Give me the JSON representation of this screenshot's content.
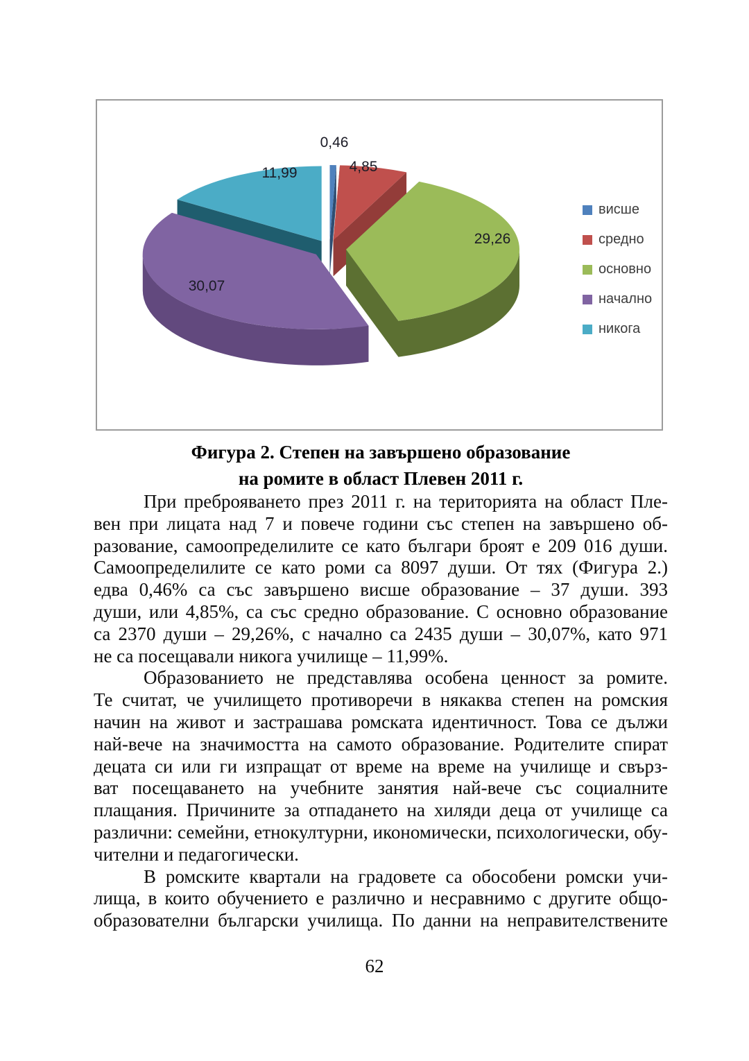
{
  "figure": {
    "caption": [
      "Фигура 2. Степен на завършено образование",
      "на ромите в област Плевен 2011 г."
    ]
  },
  "chart_data": {
    "type": "pie",
    "style": "3d-exploded",
    "legend_position": "right",
    "unit": "percent",
    "slices": [
      {
        "label": "висше",
        "value": 0.46,
        "display": "0,46",
        "color": "#4f81bd",
        "dark": "#2f4e72"
      },
      {
        "label": "средно",
        "value": 4.85,
        "display": "4,85",
        "color": "#c0504d",
        "dark": "#933c39"
      },
      {
        "label": "основно",
        "value": 29.26,
        "display": "29,26",
        "color": "#9bbb59",
        "dark": "#5c7032"
      },
      {
        "label": "начално",
        "value": 30.07,
        "display": "30,07",
        "color": "#8064a2",
        "dark": "#62497e"
      },
      {
        "label": "никога",
        "value": 11.99,
        "display": "11,99",
        "color": "#4bacc6",
        "dark": "#1f5d6e"
      }
    ]
  },
  "body": {
    "paragraphs": [
      {
        "lines": [
          "При преброяването през 2011 г. на територията на област Пле-",
          "вен при лицата над 7 и повече години със степен на завършено об-",
          "разование, самоопределилите се като българи броят е 209 016 души.",
          "Самоопределилите се като роми са 8097 души. От тях (Фигура 2.)",
          "едва 0,46% са със завършено висше образование – 37 души. 393",
          "души, или 4,85%, са със средно образование. С основно образование",
          "са 2370 души – 29,26%, с начално са 2435 души – 30,07%, като 971",
          "не са посещавали никога училище – 11,99%."
        ],
        "incomplete": false
      },
      {
        "lines": [
          "Образованието не представлява особена ценност за ромите.",
          "Те считат, че училището противоречи в някаква степен на ромския",
          "начин на живот и застрашава ромската идентичност. Това се дължи",
          "най-вече на значимостта на самото образование. Родителите спират",
          "децата си или ги изпращат от време на време на училище и свърз-",
          "ват посещаването на учебните занятия най-вече със социалните",
          "плащания. Причините за отпадането на хиляди деца от училище са",
          "различни: семейни, етнокултурни, икономически, психологически, обу-",
          "чителни и педагогически."
        ],
        "incomplete": false
      },
      {
        "lines": [
          "В ромските квартали на градовете са обособени ромски учи-",
          "лища, в които обучението е различно и несравнимо с другите общо-",
          "образователни български училища. По данни на неправителствените"
        ],
        "incomplete": true
      }
    ]
  },
  "page_number": "62"
}
